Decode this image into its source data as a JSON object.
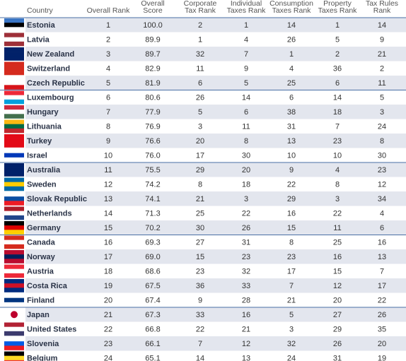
{
  "table": {
    "header": [
      [
        "Country"
      ],
      [
        "Overall Rank"
      ],
      [
        "Overall",
        "Score"
      ],
      [
        "Corporate",
        "Tax Rank"
      ],
      [
        "Individual",
        "Taxes Rank"
      ],
      [
        "Consumption",
        "Taxes Rank"
      ],
      [
        "Property",
        "Taxes Rank"
      ],
      [
        "Tax Rules",
        "Rank"
      ]
    ],
    "rows": [
      [
        "Estonia",
        "1",
        "100.0",
        "2",
        "1",
        "14",
        "1",
        "14"
      ],
      [
        "Latvia",
        "2",
        "89.9",
        "1",
        "4",
        "26",
        "5",
        "9"
      ],
      [
        "New Zealand",
        "3",
        "89.7",
        "32",
        "7",
        "1",
        "2",
        "21"
      ],
      [
        "Switzerland",
        "4",
        "82.9",
        "11",
        "9",
        "4",
        "36",
        "2"
      ],
      [
        "Czech Republic",
        "5",
        "81.9",
        "6",
        "5",
        "25",
        "6",
        "11"
      ],
      [
        "Luxembourg",
        "6",
        "80.6",
        "26",
        "14",
        "6",
        "14",
        "5"
      ],
      [
        "Hungary",
        "7",
        "77.9",
        "5",
        "6",
        "38",
        "18",
        "3"
      ],
      [
        "Lithuania",
        "8",
        "76.9",
        "3",
        "11",
        "31",
        "7",
        "24"
      ],
      [
        "Turkey",
        "9",
        "76.6",
        "20",
        "8",
        "13",
        "23",
        "8"
      ],
      [
        "Israel",
        "10",
        "76.0",
        "17",
        "30",
        "10",
        "10",
        "30"
      ],
      [
        "Australia",
        "11",
        "75.5",
        "29",
        "20",
        "9",
        "4",
        "23"
      ],
      [
        "Sweden",
        "12",
        "74.2",
        "8",
        "18",
        "22",
        "8",
        "12"
      ],
      [
        "Slovak Republic",
        "13",
        "74.1",
        "21",
        "3",
        "29",
        "3",
        "34"
      ],
      [
        "Netherlands",
        "14",
        "71.3",
        "25",
        "22",
        "16",
        "22",
        "4"
      ],
      [
        "Germany",
        "15",
        "70.2",
        "30",
        "26",
        "15",
        "11",
        "6"
      ],
      [
        "Canada",
        "16",
        "69.3",
        "27",
        "31",
        "8",
        "25",
        "16"
      ],
      [
        "Norway",
        "17",
        "69.0",
        "15",
        "23",
        "23",
        "16",
        "13"
      ],
      [
        "Austria",
        "18",
        "68.6",
        "23",
        "32",
        "17",
        "15",
        "7"
      ],
      [
        "Costa Rica",
        "19",
        "67.5",
        "36",
        "33",
        "7",
        "12",
        "17"
      ],
      [
        "Finland",
        "20",
        "67.4",
        "9",
        "28",
        "21",
        "20",
        "22"
      ],
      [
        "Japan",
        "21",
        "67.3",
        "33",
        "16",
        "5",
        "27",
        "26"
      ],
      [
        "United States",
        "22",
        "66.8",
        "22",
        "21",
        "3",
        "29",
        "35"
      ],
      [
        "Slovenia",
        "23",
        "66.1",
        "7",
        "12",
        "32",
        "26",
        "20"
      ],
      [
        "Belgium",
        "24",
        "65.1",
        "14",
        "13",
        "24",
        "31",
        "19"
      ]
    ]
  }
}
